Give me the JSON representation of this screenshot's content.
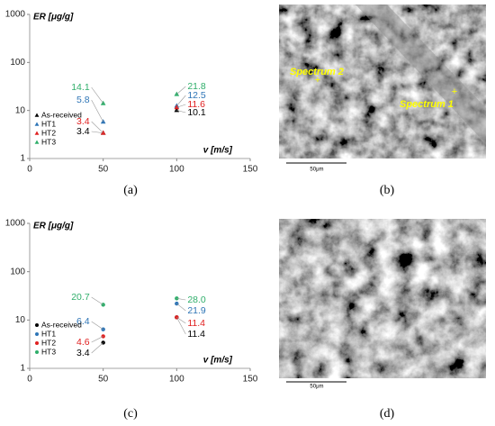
{
  "chart_data": [
    {
      "type": "scatter",
      "marker": "triangle",
      "caption": "(a)",
      "ylabel": "ER [μg/g]",
      "xlabel": "v [m/s]",
      "log_y": true,
      "xlim": [
        0,
        150
      ],
      "ylim": [
        1,
        1000
      ],
      "xticks": [
        0,
        50,
        100,
        150
      ],
      "yticks": [
        1,
        10,
        100,
        1000
      ],
      "legend": "lower left",
      "x": [
        50,
        100
      ],
      "series": [
        {
          "name": "As-received",
          "color": "#000000",
          "values": [
            3.4,
            10.1
          ]
        },
        {
          "name": "HT1",
          "color": "#2e75b6",
          "values": [
            5.8,
            12.5
          ]
        },
        {
          "name": "HT2",
          "color": "#e02020",
          "values": [
            3.4,
            11.6
          ]
        },
        {
          "name": "HT3",
          "color": "#2fae6a",
          "values": [
            14.1,
            21.8
          ]
        }
      ]
    },
    {
      "type": "scatter",
      "marker": "circle",
      "caption": "(c)",
      "ylabel": "ER [μg/g]",
      "xlabel": "v [m/s]",
      "log_y": true,
      "xlim": [
        0,
        150
      ],
      "ylim": [
        1,
        1000
      ],
      "xticks": [
        0,
        50,
        100,
        150
      ],
      "yticks": [
        1,
        10,
        100,
        1000
      ],
      "legend": "lower left",
      "x": [
        50,
        100
      ],
      "series": [
        {
          "name": "As-received",
          "color": "#000000",
          "values": [
            3.4,
            11.4
          ]
        },
        {
          "name": "HT1",
          "color": "#2e75b6",
          "values": [
            6.4,
            21.9
          ]
        },
        {
          "name": "HT2",
          "color": "#e02020",
          "values": [
            4.6,
            11.4
          ]
        },
        {
          "name": "HT3",
          "color": "#2fae6a",
          "values": [
            20.7,
            28
          ],
          "value_labels": [
            "20.7",
            "28.0"
          ]
        }
      ]
    }
  ],
  "images": [
    {
      "caption": "(b)",
      "labels": [
        "Spectrum 2",
        "Spectrum 1"
      ],
      "scale": "50μm"
    },
    {
      "caption": "(d)",
      "scale": "50μm"
    }
  ]
}
